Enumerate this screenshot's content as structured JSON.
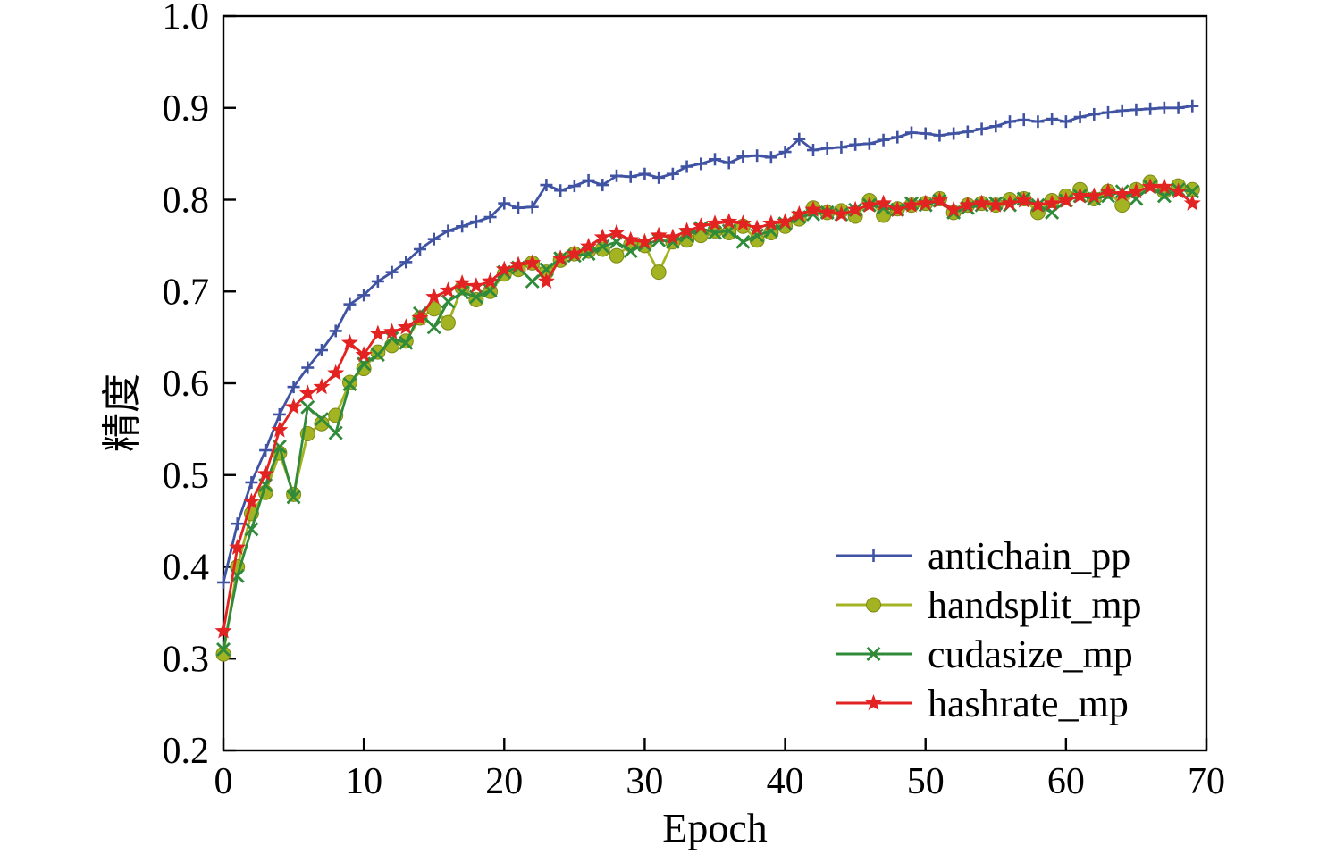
{
  "chart_data": {
    "type": "line",
    "title": "",
    "xlabel": "Epoch",
    "ylabel": "精度",
    "xlim": [
      0,
      70
    ],
    "ylim": [
      0.2,
      1.0
    ],
    "xticks": [
      0,
      10,
      20,
      30,
      40,
      50,
      60,
      70
    ],
    "yticks": [
      0.2,
      0.3,
      0.4,
      0.5,
      0.6,
      0.7,
      0.8,
      0.9,
      1.0
    ],
    "grid": false,
    "legend_position": "lower right",
    "x": [
      0,
      1,
      2,
      3,
      4,
      5,
      6,
      7,
      8,
      9,
      10,
      11,
      12,
      13,
      14,
      15,
      16,
      17,
      18,
      19,
      20,
      21,
      22,
      23,
      24,
      25,
      26,
      27,
      28,
      29,
      30,
      31,
      32,
      33,
      34,
      35,
      36,
      37,
      38,
      39,
      40,
      41,
      42,
      43,
      44,
      45,
      46,
      47,
      48,
      49,
      50,
      51,
      52,
      53,
      54,
      55,
      56,
      57,
      58,
      59,
      60,
      61,
      62,
      63,
      64,
      65,
      66,
      67,
      68,
      69
    ],
    "series": [
      {
        "name": "antichain_pp",
        "color": "#4053a3",
        "marker": "plus",
        "values": [
          0.383,
          0.447,
          0.492,
          0.527,
          0.566,
          0.596,
          0.617,
          0.636,
          0.657,
          0.686,
          0.696,
          0.711,
          0.721,
          0.732,
          0.746,
          0.757,
          0.766,
          0.771,
          0.776,
          0.781,
          0.796,
          0.791,
          0.792,
          0.816,
          0.81,
          0.815,
          0.821,
          0.816,
          0.826,
          0.825,
          0.828,
          0.824,
          0.828,
          0.836,
          0.839,
          0.844,
          0.84,
          0.847,
          0.848,
          0.846,
          0.852,
          0.866,
          0.854,
          0.856,
          0.857,
          0.86,
          0.861,
          0.865,
          0.868,
          0.873,
          0.872,
          0.87,
          0.872,
          0.874,
          0.877,
          0.88,
          0.885,
          0.887,
          0.885,
          0.888,
          0.885,
          0.89,
          0.893,
          0.895,
          0.897,
          0.898,
          0.899,
          0.9,
          0.9,
          0.902
        ]
      },
      {
        "name": "handsplit_mp",
        "color": "#a4b322",
        "marker": "circle",
        "values": [
          0.305,
          0.4,
          0.458,
          0.481,
          0.524,
          0.479,
          0.545,
          0.556,
          0.565,
          0.601,
          0.616,
          0.634,
          0.641,
          0.646,
          0.671,
          0.681,
          0.666,
          0.704,
          0.691,
          0.7,
          0.719,
          0.724,
          0.731,
          0.721,
          0.734,
          0.741,
          0.744,
          0.746,
          0.739,
          0.751,
          0.75,
          0.721,
          0.754,
          0.756,
          0.761,
          0.766,
          0.764,
          0.771,
          0.756,
          0.764,
          0.771,
          0.779,
          0.791,
          0.786,
          0.788,
          0.782,
          0.799,
          0.783,
          0.79,
          0.794,
          0.796,
          0.801,
          0.786,
          0.794,
          0.796,
          0.794,
          0.8,
          0.801,
          0.786,
          0.799,
          0.804,
          0.811,
          0.801,
          0.809,
          0.794,
          0.811,
          0.819,
          0.809,
          0.815,
          0.811
        ]
      },
      {
        "name": "cudasize_mp",
        "color": "#2f8b3a",
        "marker": "x",
        "values": [
          0.31,
          0.39,
          0.441,
          0.489,
          0.531,
          0.476,
          0.574,
          0.561,
          0.546,
          0.599,
          0.621,
          0.631,
          0.649,
          0.644,
          0.676,
          0.661,
          0.689,
          0.699,
          0.694,
          0.701,
          0.721,
          0.726,
          0.711,
          0.724,
          0.736,
          0.739,
          0.741,
          0.749,
          0.754,
          0.744,
          0.751,
          0.756,
          0.754,
          0.761,
          0.769,
          0.764,
          0.766,
          0.754,
          0.761,
          0.766,
          0.774,
          0.781,
          0.784,
          0.786,
          0.784,
          0.789,
          0.794,
          0.791,
          0.789,
          0.796,
          0.794,
          0.799,
          0.786,
          0.791,
          0.794,
          0.796,
          0.794,
          0.801,
          0.794,
          0.786,
          0.799,
          0.804,
          0.801,
          0.804,
          0.809,
          0.801,
          0.814,
          0.804,
          0.811,
          0.809
        ]
      },
      {
        "name": "hashrate_mp",
        "color": "#e32222",
        "marker": "star",
        "values": [
          0.33,
          0.421,
          0.471,
          0.501,
          0.549,
          0.574,
          0.589,
          0.596,
          0.611,
          0.644,
          0.631,
          0.654,
          0.656,
          0.661,
          0.671,
          0.694,
          0.701,
          0.709,
          0.706,
          0.711,
          0.724,
          0.729,
          0.731,
          0.711,
          0.736,
          0.741,
          0.749,
          0.759,
          0.764,
          0.756,
          0.754,
          0.761,
          0.759,
          0.766,
          0.771,
          0.774,
          0.776,
          0.774,
          0.769,
          0.774,
          0.776,
          0.784,
          0.789,
          0.786,
          0.784,
          0.789,
          0.794,
          0.796,
          0.789,
          0.794,
          0.796,
          0.799,
          0.789,
          0.794,
          0.796,
          0.794,
          0.796,
          0.799,
          0.794,
          0.796,
          0.799,
          0.804,
          0.804,
          0.809,
          0.806,
          0.809,
          0.814,
          0.814,
          0.809,
          0.796
        ]
      }
    ]
  }
}
